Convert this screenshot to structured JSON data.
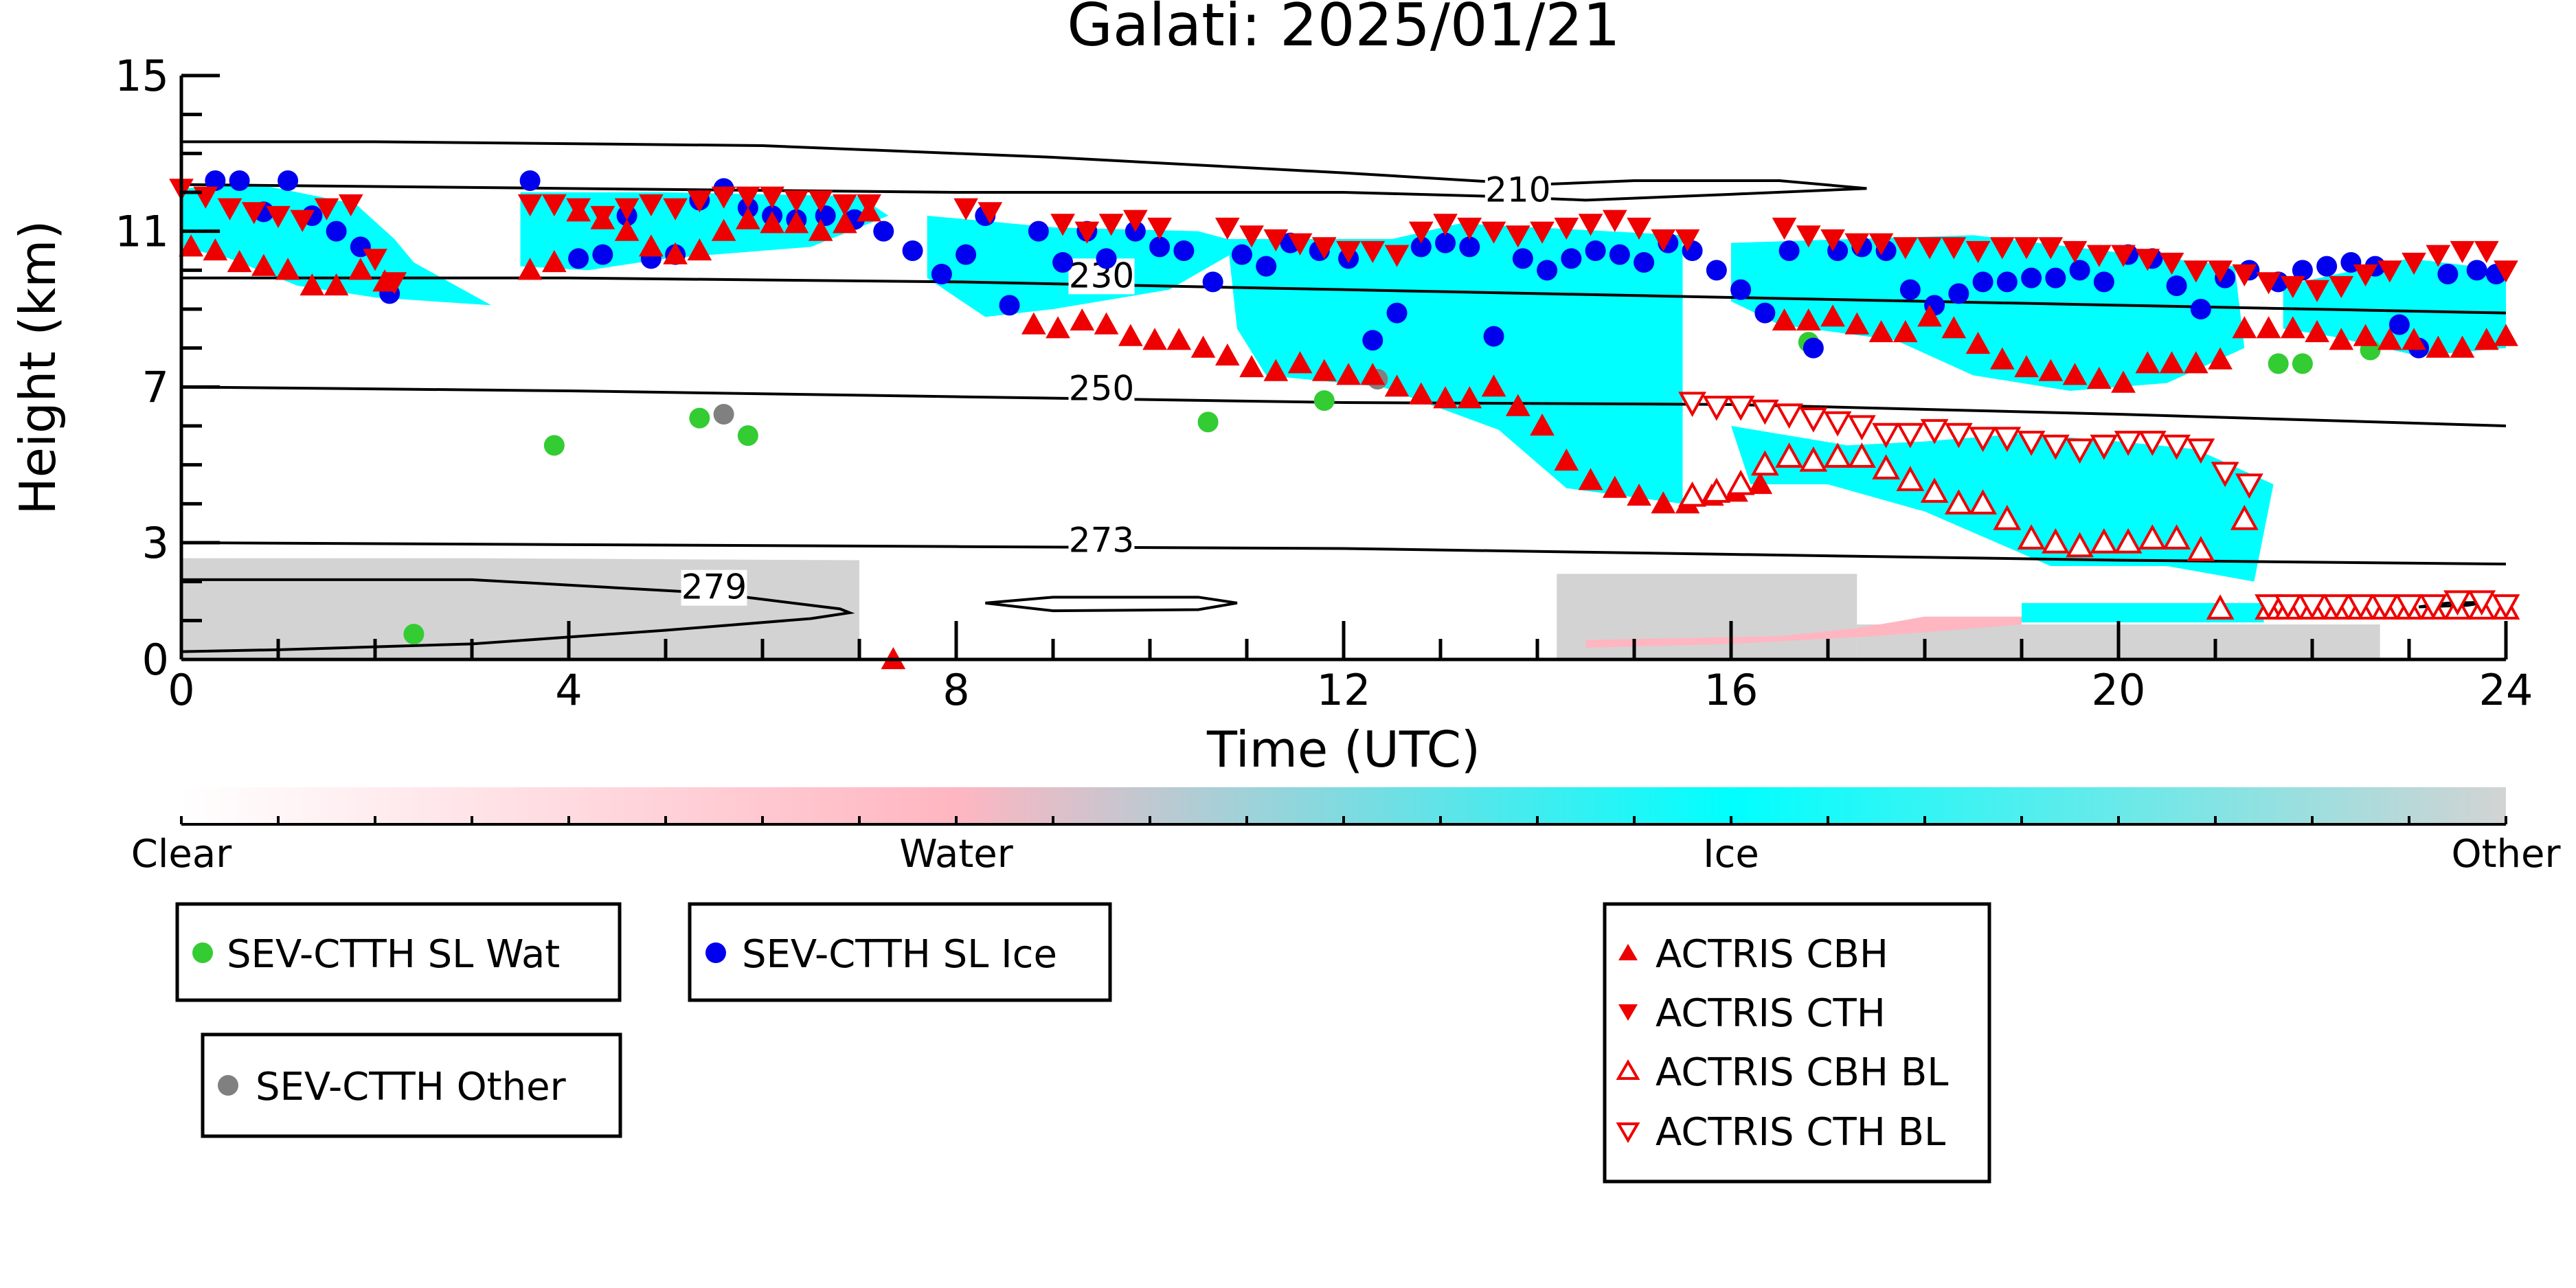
{
  "chart_data": {
    "type": "scatter",
    "title": "Galati: 2025/01/21",
    "xlabel": "Time (UTC)",
    "ylabel": "Height (km)",
    "xlim": [
      0,
      24
    ],
    "ylim": [
      0,
      15
    ],
    "xticks": [
      0,
      4,
      8,
      12,
      16,
      20,
      24
    ],
    "yticks": [
      0,
      3,
      7,
      11,
      15
    ],
    "colorbar": {
      "labels": [
        "Clear",
        "Water",
        "Ice",
        "Other"
      ],
      "colors": {
        "clear": "#ffffff",
        "water": "#ffb6c1",
        "ice": "#00ffff",
        "other": "#d3d3d3"
      }
    },
    "contours": [
      {
        "label": "210",
        "points": [
          [
            0,
            13.3
          ],
          [
            2,
            13.3
          ],
          [
            6,
            13.2
          ],
          [
            9,
            12.9
          ],
          [
            12,
            12.5
          ],
          [
            14,
            12.2
          ],
          [
            15,
            12.3
          ],
          [
            16.5,
            12.3
          ],
          [
            17.4,
            12.1
          ],
          [
            16,
            11.95
          ],
          [
            14.5,
            11.8
          ],
          [
            13.5,
            11.9
          ],
          [
            12,
            12.0
          ],
          [
            8,
            12.0
          ],
          [
            4,
            12.1
          ],
          [
            0,
            12.2
          ]
        ],
        "label_at": [
          13.8,
          11.9
        ]
      },
      {
        "label": "230",
        "points": [
          [
            0,
            9.8
          ],
          [
            4,
            9.8
          ],
          [
            8,
            9.7
          ],
          [
            12,
            9.5
          ],
          [
            16,
            9.3
          ],
          [
            20,
            9.1
          ],
          [
            24,
            8.9
          ]
        ],
        "label_at": [
          9.5,
          9.7
        ]
      },
      {
        "label": "250",
        "points": [
          [
            0,
            7.0
          ],
          [
            4,
            6.9
          ],
          [
            8,
            6.75
          ],
          [
            12,
            6.6
          ],
          [
            16,
            6.55
          ],
          [
            20,
            6.3
          ],
          [
            24,
            6.0
          ]
        ],
        "label_at": [
          9.5,
          6.8
        ]
      },
      {
        "label": "273",
        "points": [
          [
            0,
            3.0
          ],
          [
            4,
            2.95
          ],
          [
            8,
            2.9
          ],
          [
            12,
            2.85
          ],
          [
            16,
            2.7
          ],
          [
            20,
            2.55
          ],
          [
            24,
            2.45
          ]
        ],
        "label_at": [
          9.5,
          2.9
        ]
      },
      {
        "label": "279",
        "points": [
          [
            0,
            2.05
          ],
          [
            3,
            2.05
          ],
          [
            5.5,
            1.7
          ],
          [
            6.8,
            1.3
          ],
          [
            6.9,
            1.2
          ],
          [
            6.5,
            1.05
          ],
          [
            5,
            0.75
          ],
          [
            3,
            0.4
          ],
          [
            1,
            0.25
          ],
          [
            0,
            0.2
          ]
        ],
        "label_at": [
          5.5,
          1.7
        ]
      },
      {
        "label": "",
        "points": [
          [
            8.3,
            1.45
          ],
          [
            9,
            1.6
          ],
          [
            10.5,
            1.6
          ],
          [
            10.9,
            1.45
          ],
          [
            10.5,
            1.28
          ],
          [
            9,
            1.25
          ],
          [
            8.3,
            1.45
          ]
        ],
        "label_at": null
      },
      {
        "label": "",
        "points": [
          [
            23.1,
            1.35
          ],
          [
            23.4,
            1.45
          ],
          [
            23.8,
            1.47
          ],
          [
            23.6,
            1.39
          ],
          [
            23.1,
            1.35
          ]
        ],
        "label_at": null
      }
    ],
    "series": [
      {
        "name": "SEV-CTTH SL Wat",
        "color": "#33cc33",
        "marker": "circle",
        "x": [
          2.4,
          3.85,
          5.35,
          5.85,
          10.6,
          11.8,
          16.8,
          21.65,
          21.9,
          22.6
        ],
        "y": [
          0.65,
          5.5,
          6.2,
          5.75,
          6.1,
          6.65,
          8.15,
          7.6,
          7.6,
          7.95
        ]
      },
      {
        "name": "SEV-CTTH SL Ice",
        "color": "#0000ee",
        "marker": "circle",
        "x": [
          0.35,
          0.6,
          0.85,
          1.1,
          1.35,
          1.6,
          1.85,
          2.15,
          3.6,
          4.1,
          4.35,
          4.6,
          4.85,
          5.1,
          5.35,
          5.6,
          5.85,
          6.1,
          6.35,
          6.65,
          6.95,
          7.25,
          7.55,
          7.85,
          8.1,
          8.3,
          8.55,
          8.85,
          9.1,
          9.35,
          9.55,
          9.85,
          10.1,
          10.35,
          10.65,
          10.95,
          11.2,
          11.45,
          11.75,
          12.05,
          12.3,
          12.55,
          12.8,
          13.05,
          13.3,
          13.55,
          13.85,
          14.1,
          14.35,
          14.6,
          14.85,
          15.1,
          15.35,
          15.6,
          15.85,
          16.1,
          16.35,
          16.6,
          16.85,
          17.1,
          17.35,
          17.6,
          17.85,
          18.1,
          18.35,
          18.6,
          18.85,
          19.1,
          19.35,
          19.6,
          19.85,
          20.1,
          20.35,
          20.6,
          20.85,
          21.1,
          21.35,
          21.65,
          21.9,
          22.15,
          22.4,
          22.65,
          22.9,
          23.1,
          23.4,
          23.7,
          23.9
        ],
        "y": [
          12.3,
          12.3,
          11.5,
          12.3,
          11.4,
          11.0,
          10.6,
          9.4,
          12.3,
          10.3,
          10.4,
          11.4,
          10.3,
          10.4,
          11.8,
          12.1,
          11.6,
          11.4,
          11.3,
          11.4,
          11.3,
          11.0,
          10.5,
          9.9,
          10.4,
          11.4,
          9.1,
          11.0,
          10.2,
          11.0,
          10.3,
          11.0,
          10.6,
          10.5,
          9.7,
          10.4,
          10.1,
          10.7,
          10.5,
          10.3,
          8.2,
          8.9,
          10.6,
          10.7,
          10.6,
          8.3,
          10.3,
          10.0,
          10.3,
          10.5,
          10.4,
          10.2,
          10.7,
          10.5,
          10.0,
          9.5,
          8.9,
          10.5,
          8.0,
          10.5,
          10.6,
          10.5,
          9.5,
          9.1,
          9.4,
          9.7,
          9.7,
          9.8,
          9.8,
          10.0,
          9.7,
          10.4,
          10.3,
          9.6,
          9.0,
          9.8,
          10.0,
          9.7,
          10.0,
          10.1,
          10.2,
          10.1,
          8.6,
          8.0,
          9.9,
          10.0,
          9.9
        ]
      },
      {
        "name": "SEV-CTTH Other",
        "color": "#808080",
        "marker": "circle",
        "x": [
          5.6,
          12.35
        ],
        "y": [
          6.3,
          7.2
        ]
      },
      {
        "name": "ACTRIS CBH",
        "color": "#ee0000",
        "marker": "triangle-up",
        "filled": true,
        "x": [
          0.1,
          0.35,
          0.6,
          0.85,
          1.1,
          1.35,
          1.6,
          1.85,
          2.1,
          3.6,
          3.85,
          4.1,
          4.35,
          4.6,
          4.85,
          5.1,
          5.35,
          5.6,
          5.85,
          6.1,
          6.35,
          6.6,
          6.85,
          7.1,
          7.35,
          8.8,
          9.05,
          9.3,
          9.55,
          9.8,
          10.05,
          10.3,
          10.55,
          10.8,
          11.05,
          11.3,
          11.55,
          11.8,
          12.05,
          12.3,
          12.55,
          12.8,
          13.05,
          13.3,
          13.55,
          13.8,
          14.05,
          14.3,
          14.55,
          14.8,
          15.05,
          15.3,
          15.55,
          15.8,
          16.05,
          16.3,
          16.55,
          16.8,
          17.05,
          17.3,
          17.55,
          17.8,
          18.05,
          18.3,
          18.55,
          18.8,
          19.05,
          19.3,
          19.55,
          19.8,
          20.05,
          20.3,
          20.55,
          20.8,
          21.05,
          21.3,
          21.55,
          21.8,
          22.05,
          22.3,
          22.55,
          22.8,
          23.05,
          23.3,
          23.55,
          23.8,
          24.0
        ],
        "y": [
          10.6,
          10.5,
          10.2,
          10.1,
          10.0,
          9.6,
          9.6,
          10.0,
          9.7,
          10.0,
          10.2,
          11.5,
          11.3,
          11.0,
          10.6,
          10.4,
          10.5,
          11.0,
          11.3,
          11.2,
          11.2,
          11.0,
          11.2,
          11.5,
          0.0,
          8.6,
          8.5,
          8.7,
          8.6,
          8.3,
          8.2,
          8.2,
          8.0,
          7.8,
          7.5,
          7.4,
          7.6,
          7.4,
          7.3,
          7.3,
          7.0,
          6.8,
          6.7,
          6.7,
          7.0,
          6.5,
          6.0,
          5.1,
          4.6,
          4.4,
          4.2,
          4.0,
          4.0,
          4.2,
          4.3,
          4.5,
          8.7,
          8.7,
          8.8,
          8.6,
          8.4,
          8.4,
          8.8,
          8.5,
          8.1,
          7.7,
          7.5,
          7.4,
          7.3,
          7.2,
          7.1,
          7.6,
          7.6,
          7.6,
          7.7,
          8.5,
          8.5,
          8.5,
          8.4,
          8.2,
          8.3,
          8.2,
          8.2,
          8.0,
          8.0,
          8.2,
          8.3
        ]
      },
      {
        "name": "ACTRIS CTH",
        "color": "#ee0000",
        "marker": "triangle-down",
        "filled": true,
        "x": [
          0.0,
          0.25,
          0.5,
          0.75,
          1.0,
          1.25,
          1.5,
          1.75,
          2.0,
          2.2,
          3.6,
          3.85,
          4.1,
          4.35,
          4.6,
          4.85,
          5.1,
          5.35,
          5.6,
          5.85,
          6.1,
          6.35,
          6.6,
          6.85,
          7.1,
          8.1,
          8.35,
          9.1,
          9.35,
          9.6,
          9.85,
          10.1,
          10.8,
          11.05,
          11.3,
          11.55,
          11.8,
          12.05,
          12.3,
          12.55,
          12.8,
          13.05,
          13.3,
          13.55,
          13.8,
          14.05,
          14.3,
          14.55,
          14.8,
          15.05,
          15.3,
          15.55,
          16.55,
          16.8,
          17.05,
          17.3,
          17.55,
          17.8,
          18.05,
          18.3,
          18.55,
          18.8,
          19.05,
          19.3,
          19.55,
          19.8,
          20.05,
          20.3,
          20.55,
          20.8,
          21.05,
          21.3,
          21.55,
          21.8,
          22.05,
          22.3,
          22.55,
          22.8,
          23.05,
          23.3,
          23.55,
          23.8,
          24.0
        ],
        "y": [
          12.1,
          11.9,
          11.6,
          11.5,
          11.4,
          11.3,
          11.6,
          11.7,
          10.3,
          9.7,
          11.7,
          11.7,
          11.6,
          11.4,
          11.6,
          11.7,
          11.6,
          11.8,
          11.9,
          11.9,
          11.9,
          11.8,
          11.8,
          11.7,
          11.7,
          11.6,
          11.5,
          11.2,
          11.0,
          11.2,
          11.3,
          11.1,
          11.1,
          10.9,
          10.8,
          10.7,
          10.6,
          10.5,
          10.5,
          10.4,
          11.0,
          11.2,
          11.1,
          11.0,
          10.9,
          11.0,
          11.1,
          11.2,
          11.3,
          11.1,
          10.8,
          10.8,
          11.1,
          10.9,
          10.8,
          10.7,
          10.7,
          10.6,
          10.6,
          10.6,
          10.5,
          10.6,
          10.6,
          10.6,
          10.5,
          10.4,
          10.4,
          10.3,
          10.2,
          10.0,
          10.0,
          9.9,
          9.7,
          9.6,
          9.5,
          9.6,
          9.9,
          10.0,
          10.2,
          10.4,
          10.5,
          10.5,
          10.0
        ]
      },
      {
        "name": "ACTRIS CBH BL",
        "color": "#ee0000",
        "marker": "triangle-up",
        "filled": false,
        "x": [
          15.6,
          15.85,
          16.1,
          16.35,
          16.6,
          16.85,
          17.1,
          17.35,
          17.6,
          17.85,
          18.1,
          18.35,
          18.6,
          18.85,
          19.1,
          19.35,
          19.6,
          19.85,
          20.1,
          20.35,
          20.6,
          20.85,
          21.05,
          21.3,
          21.55,
          21.75,
          22.0,
          22.25,
          22.5,
          22.75,
          23.0,
          23.25,
          23.5,
          23.75,
          24.0
        ],
        "y": [
          4.2,
          4.3,
          4.5,
          5.0,
          5.2,
          5.1,
          5.2,
          5.2,
          4.9,
          4.6,
          4.3,
          4.0,
          4.0,
          3.6,
          3.1,
          3.0,
          2.9,
          3.0,
          3.0,
          3.1,
          3.1,
          2.8,
          1.3,
          3.6,
          1.3,
          1.3,
          1.3,
          1.3,
          1.3,
          1.3,
          1.3,
          1.3,
          1.3,
          1.3,
          1.3
        ]
      },
      {
        "name": "ACTRIS CTH BL",
        "color": "#ee0000",
        "marker": "triangle-down",
        "filled": false,
        "x": [
          15.6,
          15.85,
          16.1,
          16.35,
          16.6,
          16.85,
          17.1,
          17.35,
          17.6,
          17.85,
          18.1,
          18.35,
          18.6,
          18.85,
          19.1,
          19.35,
          19.6,
          19.85,
          20.1,
          20.35,
          20.6,
          20.85,
          21.1,
          21.35,
          21.55,
          21.75,
          22.0,
          22.25,
          22.5,
          22.75,
          23.0,
          23.25,
          23.5,
          23.75,
          24.0
        ],
        "y": [
          6.6,
          6.5,
          6.5,
          6.4,
          6.3,
          6.2,
          6.1,
          6.0,
          5.8,
          5.8,
          5.9,
          5.8,
          5.7,
          5.7,
          5.6,
          5.5,
          5.4,
          5.5,
          5.6,
          5.6,
          5.5,
          5.4,
          4.8,
          4.5,
          1.4,
          1.4,
          1.4,
          1.4,
          1.4,
          1.4,
          1.4,
          1.4,
          1.5,
          1.5,
          1.4
        ]
      }
    ]
  }
}
